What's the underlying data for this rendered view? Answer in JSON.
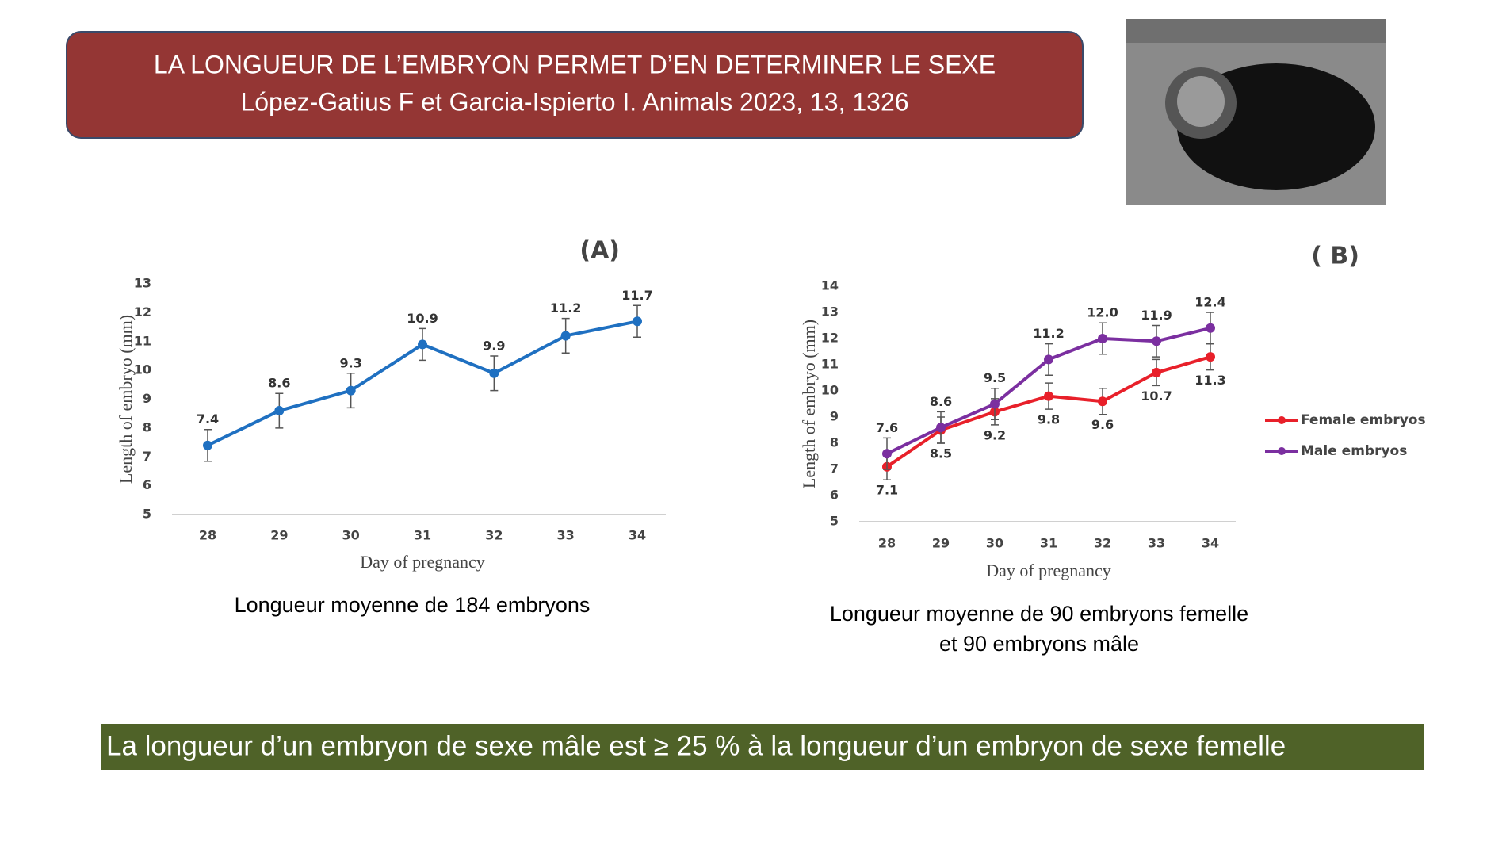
{
  "header": {
    "title": "LA LONGUEUR DE L’EMBRYON PERMET D’EN DETERMINER LE SEXE",
    "subtitle": "López-Gatius F et Garcia-Ispierto I. Animals 2023, 13, 1326"
  },
  "chart_data": [
    {
      "type": "line",
      "title": "(A)",
      "x_label": "Day of pregnancy",
      "y_label": "Length of embryo (mm)",
      "categories": [
        "28",
        "29",
        "30",
        "31",
        "32",
        "33",
        "34"
      ],
      "values": [
        7.4,
        8.6,
        9.3,
        10.9,
        9.9,
        11.2,
        11.7
      ],
      "errors": [
        0.55,
        0.6,
        0.6,
        0.55,
        0.6,
        0.6,
        0.55
      ],
      "color": "#1f70c1",
      "ylim": [
        5,
        13
      ],
      "yticks": [
        5,
        6,
        7,
        8,
        9,
        10,
        11,
        12,
        13
      ],
      "grid": false
    },
    {
      "type": "line",
      "title": "( B)",
      "x_label": "Day of pregnancy",
      "y_label": "Length of embryo (mm)",
      "categories": [
        "28",
        "29",
        "30",
        "31",
        "32",
        "33",
        "34"
      ],
      "series": [
        {
          "name": "Female embryos",
          "color": "#e8202a",
          "values": [
            7.1,
            8.5,
            9.2,
            9.8,
            9.6,
            10.7,
            11.3
          ],
          "errors": [
            0.5,
            0.5,
            0.5,
            0.5,
            0.5,
            0.5,
            0.5
          ]
        },
        {
          "name": "Male embryos",
          "color": "#7b2fa0",
          "values": [
            7.6,
            8.6,
            9.5,
            11.2,
            12.0,
            11.9,
            12.4
          ],
          "value_labels": [
            "7.6",
            "8.6",
            "9.5",
            "11.2",
            "12.0",
            "11.9",
            "12.4"
          ],
          "errors": [
            0.6,
            0.6,
            0.6,
            0.6,
            0.6,
            0.6,
            0.6
          ]
        }
      ],
      "ylim": [
        5,
        14
      ],
      "yticks": [
        5,
        6,
        7,
        8,
        9,
        10,
        11,
        12,
        13,
        14
      ],
      "grid": false,
      "legend": "right"
    }
  ],
  "captions": [
    "Longueur moyenne de 184 embryons",
    "Longueur moyenne de 90 embryons femelle",
    "et 90 embryons mâle"
  ],
  "conclusion": "La longueur d’un embryon de sexe mâle est ≥ 25 % à la longueur d’un embryon de sexe femelle"
}
